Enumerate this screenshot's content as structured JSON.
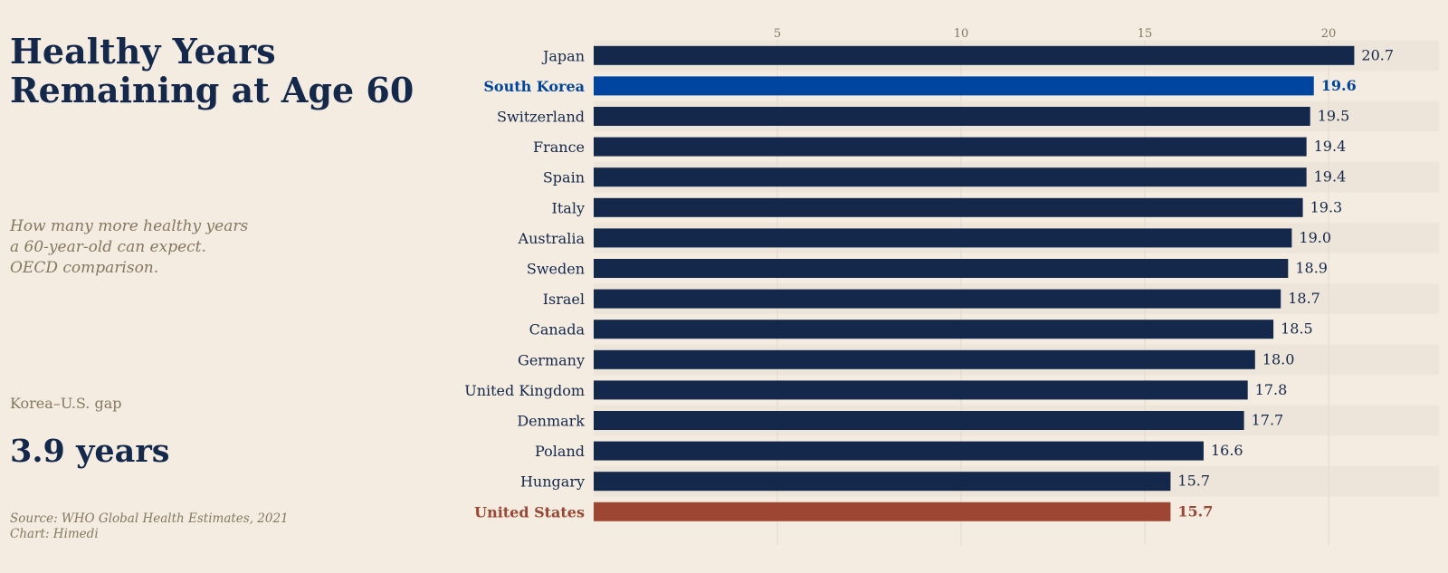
{
  "title_lines": [
    "Healthy Years",
    "Remaining at Age 60"
  ],
  "subtitle_lines": [
    "How many more healthy years",
    "a 60-year-old can expect.",
    "OECD comparison."
  ],
  "callout": {
    "label": "Korea–U.S. gap",
    "value": "3.9 years"
  },
  "source_lines": [
    "Source: WHO Global Health Estimates, 2021",
    "Chart: Himedi"
  ],
  "colors": {
    "background": "#f4ece0",
    "band": "#ede5d9",
    "default_bar": "#14284b",
    "highlight_korea": "#0046a0",
    "highlight_us": "#9c4633",
    "tick": "#857760",
    "grid": "#e3d9ca"
  },
  "chart_data": {
    "type": "bar",
    "orientation": "horizontal",
    "title": "Healthy Years Remaining at Age 60",
    "xlabel": "",
    "ylabel": "",
    "xlim": [
      0,
      23
    ],
    "xticks": [
      5,
      10,
      15,
      20
    ],
    "grid": true,
    "legend": "none",
    "data_labels_decimals": 1,
    "categories": [
      "Japan",
      "South Korea",
      "Switzerland",
      "France",
      "Spain",
      "Italy",
      "Australia",
      "Sweden",
      "Israel",
      "Canada",
      "Germany",
      "United Kingdom",
      "Denmark",
      "Poland",
      "Hungary",
      "United States"
    ],
    "values": [
      20.7,
      19.6,
      19.5,
      19.4,
      19.4,
      19.3,
      19.0,
      18.9,
      18.7,
      18.5,
      18.0,
      17.8,
      17.7,
      16.6,
      15.7,
      15.7
    ],
    "highlights": {
      "South Korea": "highlight_korea",
      "United States": "highlight_us"
    }
  }
}
